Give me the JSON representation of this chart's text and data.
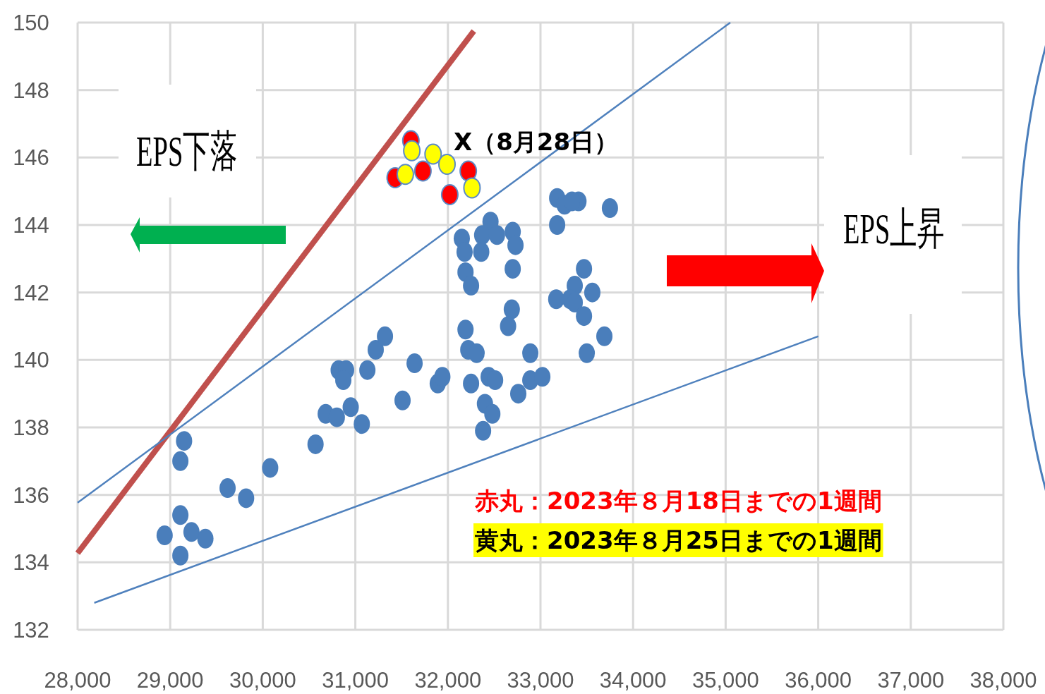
{
  "chart_data": {
    "type": "scatter",
    "xlim": [
      28000,
      38000
    ],
    "ylim": [
      132,
      150
    ],
    "xticks": [
      {
        "value": 28000,
        "label": "28,000"
      },
      {
        "value": 29000,
        "label": "29,000"
      },
      {
        "value": 30000,
        "label": "30,000"
      },
      {
        "value": 31000,
        "label": "31,000"
      },
      {
        "value": 32000,
        "label": "32,000"
      },
      {
        "value": 33000,
        "label": "33,000"
      },
      {
        "value": 34000,
        "label": "34,000"
      },
      {
        "value": 35000,
        "label": "35,000"
      },
      {
        "value": 36000,
        "label": "36,000"
      },
      {
        "value": 37000,
        "label": "37,000"
      },
      {
        "value": 38000,
        "label": "38,000"
      }
    ],
    "yticks": [
      132,
      134,
      136,
      138,
      140,
      142,
      144,
      146,
      148,
      150
    ],
    "grid": true,
    "annotations": [
      "EPS下落",
      "EPS上昇",
      "X（8月28日）",
      "赤丸：2023年８月18日までの1週間",
      "黄丸：2023年８月25日までの1週間"
    ],
    "series": [
      {
        "type": "scatter",
        "marker": "circle",
        "color": "#4a7ebb",
        "x": [
          28940,
          29110,
          29230,
          29380,
          29110,
          29110,
          29150,
          29620,
          29820,
          30080,
          30570,
          30680,
          30800,
          30950,
          31070,
          30820,
          30900,
          30870,
          31130,
          31220,
          31320,
          31510,
          31640,
          31890,
          31940,
          32150,
          32180,
          32190,
          32250,
          32190,
          32220,
          32310,
          32250,
          32440,
          32510,
          32400,
          32480,
          32380,
          32460,
          32370,
          32360,
          32530,
          32700,
          32730,
          32700,
          32690,
          32650,
          32760,
          32890,
          32890,
          33020,
          33180,
          33260,
          33410,
          33340,
          33180,
          33750,
          33470,
          33370,
          33320,
          33170,
          33370,
          33560,
          33470,
          33500,
          33690
        ],
        "values": [
          134.8,
          135.4,
          134.9,
          134.7,
          134.2,
          137.0,
          137.6,
          136.2,
          135.9,
          136.8,
          137.5,
          138.4,
          138.3,
          138.6,
          138.1,
          139.7,
          139.7,
          139.4,
          139.7,
          140.3,
          140.7,
          138.8,
          139.9,
          139.3,
          139.5,
          143.6,
          143.2,
          142.6,
          142.2,
          140.9,
          140.3,
          140.2,
          139.3,
          139.5,
          139.4,
          138.7,
          138.4,
          137.9,
          144.1,
          143.7,
          143.2,
          143.7,
          143.8,
          143.4,
          142.7,
          141.5,
          141.0,
          139.0,
          140.2,
          139.4,
          139.5,
          144.8,
          144.6,
          144.7,
          144.7,
          144.0,
          144.5,
          142.7,
          142.2,
          141.8,
          141.8,
          141.7,
          142.0,
          141.3,
          140.2,
          140.7
        ]
      },
      {
        "type": "scatter",
        "marker": "circle",
        "color": "#ff0000",
        "x": [
          31430,
          31600,
          31730,
          32020,
          32220
        ],
        "values": [
          145.4,
          146.5,
          145.6,
          144.9,
          145.6
        ]
      },
      {
        "type": "scatter",
        "marker": "circle",
        "color": "#ffff00",
        "x": [
          31540,
          31610,
          31840,
          31990,
          32260
        ],
        "values": [
          145.5,
          146.2,
          146.1,
          145.8,
          145.1
        ]
      },
      {
        "type": "line",
        "color": "#c0504d",
        "x": [
          28000,
          32280
        ],
        "values": [
          134.27,
          149.75
        ]
      },
      {
        "type": "line",
        "color": "#4f81bd",
        "x": [
          28000,
          35050
        ],
        "values": [
          135.77,
          150
        ]
      },
      {
        "type": "line",
        "color": "#4f81bd",
        "x": [
          28180,
          36000
        ],
        "values": [
          132.8,
          140.7
        ]
      }
    ]
  }
}
